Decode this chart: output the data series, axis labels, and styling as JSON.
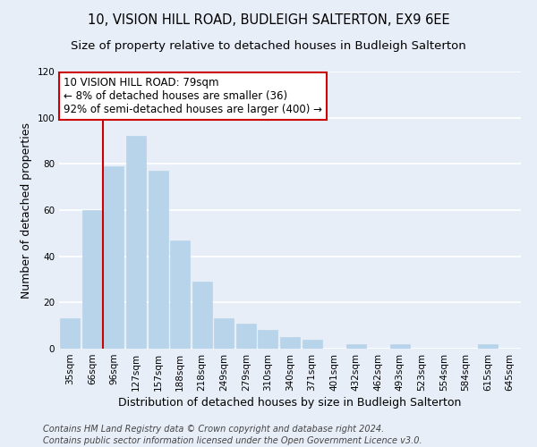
{
  "title": "10, VISION HILL ROAD, BUDLEIGH SALTERTON, EX9 6EE",
  "subtitle": "Size of property relative to detached houses in Budleigh Salterton",
  "xlabel": "Distribution of detached houses by size in Budleigh Salterton",
  "ylabel": "Number of detached properties",
  "bar_labels": [
    "35sqm",
    "66sqm",
    "96sqm",
    "127sqm",
    "157sqm",
    "188sqm",
    "218sqm",
    "249sqm",
    "279sqm",
    "310sqm",
    "340sqm",
    "371sqm",
    "401sqm",
    "432sqm",
    "462sqm",
    "493sqm",
    "523sqm",
    "554sqm",
    "584sqm",
    "615sqm",
    "645sqm"
  ],
  "bar_values": [
    13,
    60,
    79,
    92,
    77,
    47,
    29,
    13,
    11,
    8,
    5,
    4,
    0,
    2,
    0,
    2,
    0,
    0,
    0,
    2,
    0
  ],
  "bar_color": "#b8d4ea",
  "bar_edge_color": "#b8d4ea",
  "vline_x": 1.5,
  "vline_color": "#cc0000",
  "ylim": [
    0,
    120
  ],
  "yticks": [
    0,
    20,
    40,
    60,
    80,
    100,
    120
  ],
  "annotation_text": "10 VISION HILL ROAD: 79sqm\n← 8% of detached houses are smaller (36)\n92% of semi-detached houses are larger (400) →",
  "annotation_box_color": "#ffffff",
  "annotation_box_edge": "#cc0000",
  "footer_line1": "Contains HM Land Registry data © Crown copyright and database right 2024.",
  "footer_line2": "Contains public sector information licensed under the Open Government Licence v3.0.",
  "background_color": "#e8eef8",
  "grid_color": "#ffffff",
  "title_fontsize": 10.5,
  "subtitle_fontsize": 9.5,
  "axis_label_fontsize": 9,
  "tick_fontsize": 7.5,
  "footer_fontsize": 7,
  "annotation_fontsize": 8.5
}
